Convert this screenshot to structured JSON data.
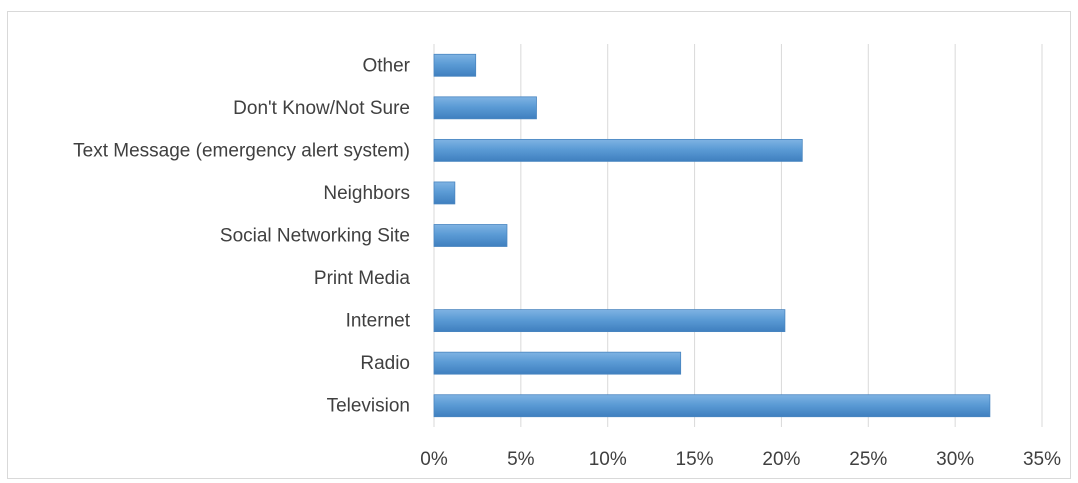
{
  "chart_data": {
    "type": "bar",
    "orientation": "horizontal",
    "categories": [
      "Other",
      "Don't Know/Not Sure",
      "Text Message (emergency alert system)",
      "Neighbors",
      "Social Networking Site",
      "Print Media",
      "Internet",
      "Radio",
      "Television"
    ],
    "values": [
      2.4,
      5.9,
      21.2,
      1.2,
      4.2,
      0,
      20.2,
      14.2,
      32.0
    ],
    "xlim": [
      0,
      35
    ],
    "xticks": [
      "0%",
      "5%",
      "10%",
      "15%",
      "20%",
      "25%",
      "30%",
      "35%"
    ],
    "grid": true,
    "bar_color": "#5b9bd5",
    "title": "",
    "xlabel": "",
    "ylabel": ""
  }
}
